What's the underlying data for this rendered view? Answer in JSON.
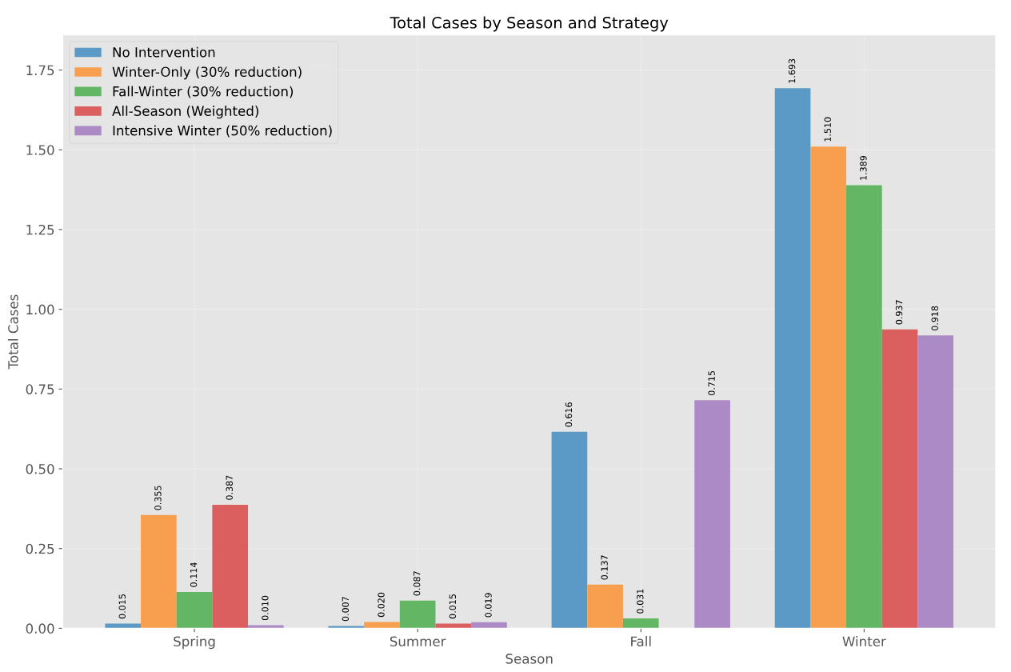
{
  "chart_data": {
    "type": "bar",
    "title": "Total Cases by Season and Strategy",
    "xlabel": "Season",
    "ylabel": "Total Cases",
    "categories": [
      "Spring",
      "Summer",
      "Fall",
      "Winter"
    ],
    "series": [
      {
        "name": "No Intervention",
        "color": "#5b9ac6",
        "values": [
          0.015,
          0.007,
          0.616,
          1.693
        ],
        "value_labels": [
          "0.015",
          "0.007",
          "0.616",
          "1.693"
        ]
      },
      {
        "name": "Winter-Only (30% reduction)",
        "color": "#f79f4e",
        "values": [
          0.355,
          0.02,
          0.137,
          1.51
        ],
        "value_labels": [
          "0.355",
          "0.020",
          "0.137",
          "1.510"
        ]
      },
      {
        "name": "Fall-Winter (30% reduction)",
        "color": "#63b764",
        "values": [
          0.114,
          0.087,
          0.031,
          1.389
        ],
        "value_labels": [
          "0.114",
          "0.087",
          "0.031",
          "1.389"
        ]
      },
      {
        "name": "All-Season (Weighted)",
        "color": "#dc5f60",
        "values": [
          0.387,
          0.015,
          null,
          0.937
        ],
        "value_labels": [
          "0.387",
          "0.015",
          null,
          "0.937"
        ]
      },
      {
        "name": "Intensive Winter (50% reduction)",
        "color": "#ab8ac6",
        "values": [
          0.01,
          0.019,
          0.715,
          0.918
        ],
        "value_labels": [
          "0.010",
          "0.019",
          "0.715",
          "0.918"
        ]
      }
    ],
    "ylim": [
      0,
      1.86
    ],
    "yticks": [
      "0.00",
      "0.25",
      "0.50",
      "0.75",
      "1.00",
      "1.25",
      "1.50",
      "1.75"
    ],
    "grid": true,
    "legend": "top left"
  }
}
